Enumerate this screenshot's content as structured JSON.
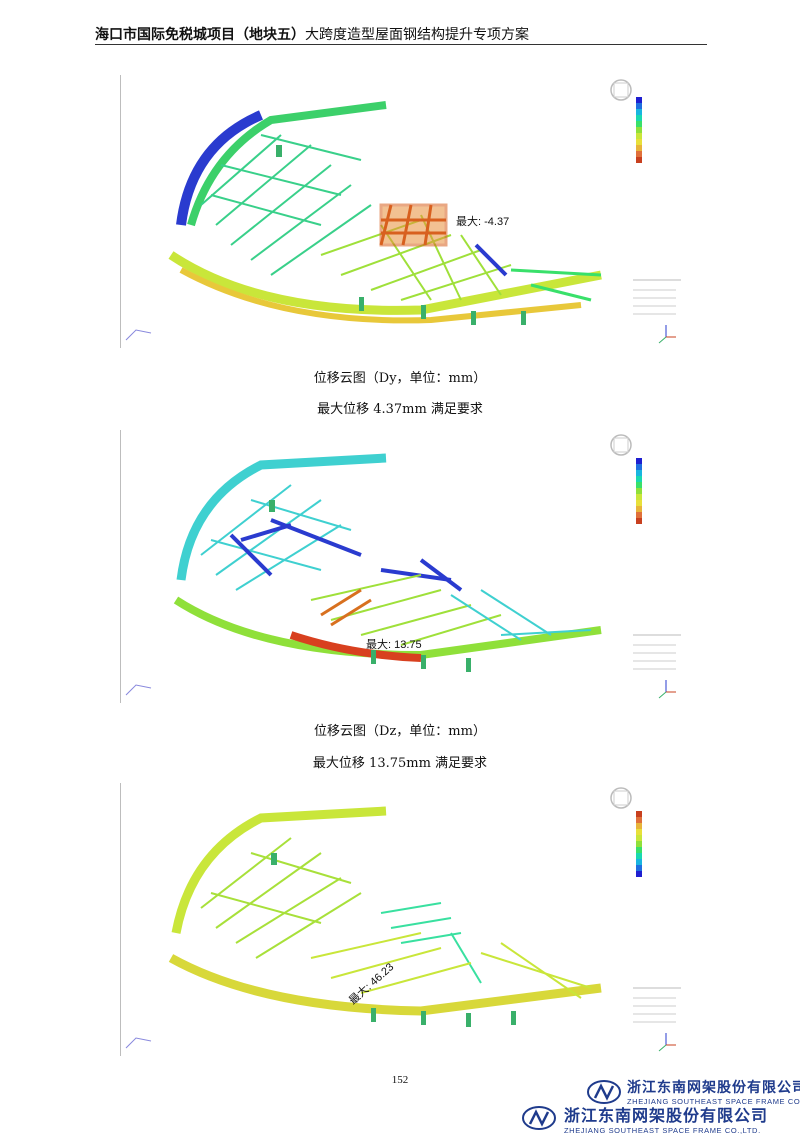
{
  "header": {
    "title_bold": "海口市国际免税城项目（地块五）",
    "title_rest": "大跨度造型屋面钢结构提升专项方案"
  },
  "figures": [
    {
      "max_label": "最大: -4.37",
      "caption": "位移云图（Dy，单位：mm）",
      "note": "最大位移 4.37mm 满足要求"
    },
    {
      "max_label": "最大: 13.75",
      "caption": "位移云图（Dz，单位：mm）",
      "note": "最大位移 13.75mm 满足要求"
    },
    {
      "max_label": "最大: 46.23",
      "caption": "",
      "note": ""
    }
  ],
  "page_number": "152",
  "company": {
    "name_cn": "浙江东南网架股份有限公司",
    "name_en": "ZHEJIANG SOUTHEAST SPACE FRAME CO.,LTD."
  },
  "colors": {
    "contour_scale": [
      "#1f1fd0",
      "#1f6fe0",
      "#19b5e0",
      "#19d9b0",
      "#39e06a",
      "#8fe03a",
      "#c9e63a",
      "#e8e03a",
      "#e8b43a",
      "#e0703a",
      "#c8401f"
    ],
    "brand": "#1f3b8c"
  }
}
